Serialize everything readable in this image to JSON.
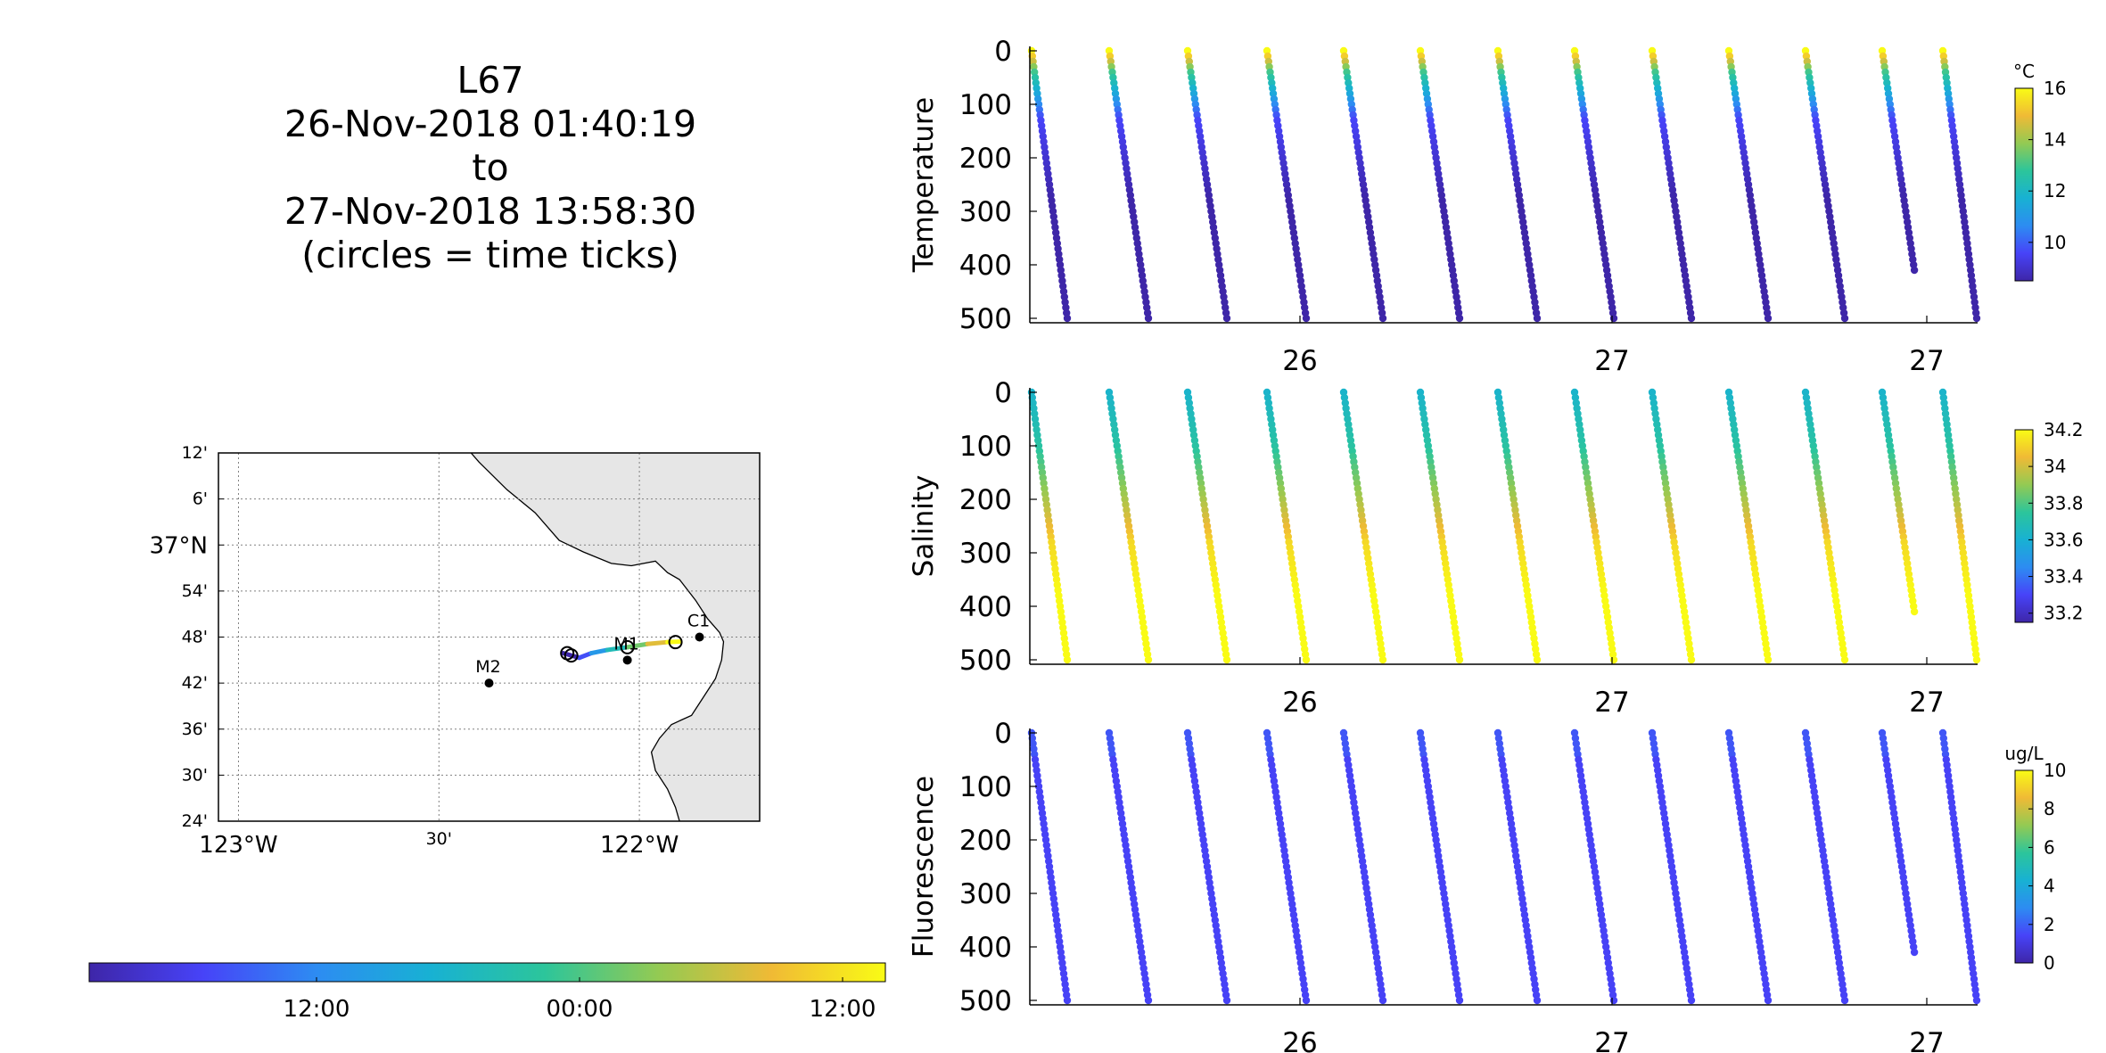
{
  "title": {
    "lines": [
      "L67",
      "26-Nov-2018 01:40:19",
      "to",
      "27-Nov-2018 13:58:30",
      "(circles = time ticks)"
    ]
  },
  "colors": {
    "parula": [
      "#3e26a8",
      "#4743f8",
      "#2d8cf2",
      "#18b1d3",
      "#2cc59b",
      "#93ca53",
      "#f0ba35",
      "#f9fb15"
    ],
    "land": "#e6e6e6",
    "axis": "#000000",
    "grid": "#808080"
  },
  "map": {
    "lat_ticks": [
      "24'",
      "30'",
      "36'",
      "42'",
      "48'",
      "54'",
      "37°N",
      "6'",
      "12'"
    ],
    "lon_ticks": [
      "123°W",
      "30'",
      "122°W"
    ],
    "stations": [
      {
        "name": "M2",
        "lon": -122.375,
        "lat": 36.7
      },
      {
        "name": "M1",
        "lon": -122.03,
        "lat": 36.75
      },
      {
        "name": "C1",
        "lon": -121.85,
        "lat": 36.8
      }
    ],
    "track_time_ticks": 4
  },
  "time_colorbar": {
    "tick_labels": [
      "12:00",
      "00:00",
      "12:00"
    ]
  },
  "chart_data": [
    {
      "type": "scatter",
      "name": "Temperature",
      "ylabel": "Temperature",
      "yticks": [
        0,
        100,
        200,
        300,
        400,
        500
      ],
      "ylim": [
        0,
        500
      ],
      "xtick_labels": [
        "26",
        "27",
        "27"
      ],
      "colorbar": {
        "unit": "°C",
        "ticks": [
          10,
          12,
          14,
          16
        ],
        "range": [
          8.5,
          16
        ]
      }
    },
    {
      "type": "scatter",
      "name": "Salinity",
      "ylabel": "Salinity",
      "yticks": [
        0,
        100,
        200,
        300,
        400,
        500
      ],
      "ylim": [
        0,
        500
      ],
      "xtick_labels": [
        "26",
        "27",
        "27"
      ],
      "colorbar": {
        "unit": "",
        "ticks": [
          33.2,
          33.4,
          33.6,
          33.8,
          34,
          34.2
        ],
        "range": [
          33.15,
          34.2
        ]
      }
    },
    {
      "type": "scatter",
      "name": "Fluorescence",
      "ylabel": "Fluorescence",
      "yticks": [
        0,
        100,
        200,
        300,
        400,
        500
      ],
      "ylim": [
        0,
        500
      ],
      "xtick_labels": [
        "26",
        "27",
        "27"
      ],
      "colorbar": {
        "unit": "ug/L",
        "ticks": [
          0,
          2,
          4,
          6,
          8,
          10
        ],
        "range": [
          0,
          10
        ]
      }
    }
  ]
}
